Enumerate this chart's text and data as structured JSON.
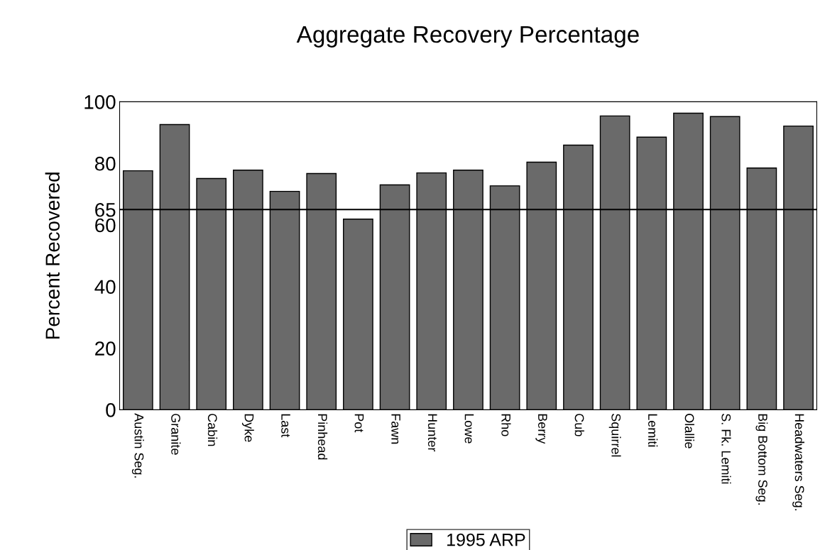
{
  "chart_data": {
    "type": "bar",
    "title": "Aggregate Recovery Percentage",
    "ylabel": "Percent Recovered",
    "categories": [
      "Austin Seg.",
      "Granite",
      "Cabin",
      "Dyke",
      "Last",
      "Pinhead",
      "Pot",
      "Fawn",
      "Hunter",
      "Lowe",
      "Rho",
      "Berry",
      "Cub",
      "Squirrel",
      "Lemiti",
      "Olallie",
      "S. Fk. Lemiti",
      "Big Bottom Seg.",
      "Headwaters Seg."
    ],
    "series": [
      {
        "name": "1995 ARP",
        "color": "#6a6a6a",
        "values": [
          77.6,
          92.6,
          75.1,
          77.8,
          70.9,
          76.7,
          61.9,
          73.0,
          76.9,
          77.8,
          72.7,
          80.4,
          85.9,
          95.4,
          88.5,
          96.3,
          95.2,
          78.5,
          92.1
        ]
      }
    ],
    "ylim": [
      0,
      100
    ],
    "yticks": [
      0,
      20,
      40,
      60,
      65,
      80,
      100
    ],
    "ref_lines": [
      {
        "axis": "y",
        "value": 65,
        "color": "#000000",
        "line_style": "solid"
      }
    ],
    "legend": "bottom",
    "grid": false
  }
}
